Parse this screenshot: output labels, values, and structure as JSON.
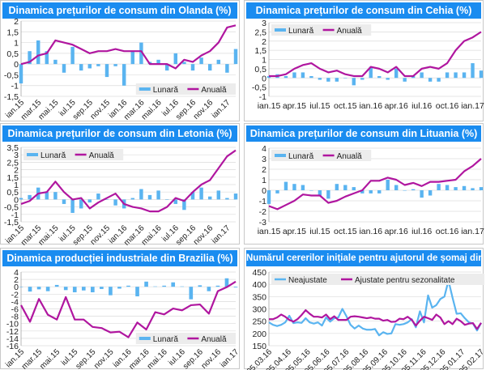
{
  "colors": {
    "bar": "#5ab4f0",
    "line": "#b0169f",
    "title_bg": "#1a8cf0",
    "grid": "#dcdcdc"
  },
  "chart_data": [
    {
      "type": "bar+line",
      "title": "Dinamica prețurilor de consum din Olanda (%)",
      "ylim": [
        -1.5,
        2
      ],
      "yticks": [
        "-1,5",
        "-1",
        "-0,5",
        "0",
        "0,5",
        "1",
        "1,5",
        "2"
      ],
      "ytick_values": [
        -1.5,
        -1,
        -0.5,
        0,
        0.5,
        1,
        1.5,
        2
      ],
      "legend": "bottom-right",
      "label_rotation": "rotated",
      "categories": [
        "ian.15",
        "feb.15",
        "mar.15",
        "apr.15",
        "mai.15",
        "iun.15",
        "iul.15",
        "aug.15",
        "sep.15",
        "oct.15",
        "nov.15",
        "dec.15",
        "ian.16",
        "feb.16",
        "mar.16",
        "apr.16",
        "mai.16",
        "iun.16",
        "iul.16",
        "aug.16",
        "sep.16",
        "oct.16",
        "nov.16",
        "dec.16",
        "ian.17",
        "feb.17"
      ],
      "xtick_labels": [
        "ian.15",
        "mar.15",
        "mai.15",
        "iul.15",
        "sep.15",
        "nov.15",
        "ian.16",
        "mar.16",
        "mai.16",
        "iul.16",
        "sep.16",
        "nov.16",
        "ian.17"
      ],
      "series": [
        {
          "name": "Lunară",
          "type": "bar",
          "values": [
            -0.9,
            0.6,
            1.1,
            0.6,
            0.2,
            -0.4,
            0.8,
            -0.3,
            -0.2,
            -0.1,
            -0.6,
            -0.1,
            -1.0,
            0.6,
            1.0,
            0.1,
            0.2,
            -0.3,
            0.5,
            0.1,
            -0.3,
            0.3,
            -0.3,
            0.2,
            -0.4,
            0.7
          ]
        },
        {
          "name": "Anuală",
          "type": "line",
          "values": [
            0,
            0.1,
            0.4,
            0.5,
            1.1,
            1.0,
            0.9,
            0.7,
            0.5,
            0.6,
            0.6,
            0.7,
            0.6,
            0.6,
            0.6,
            0,
            0,
            0,
            -0.2,
            0.2,
            0.1,
            0.4,
            0.6,
            1.0,
            1.7,
            1.8
          ]
        }
      ]
    },
    {
      "type": "bar+line",
      "title": "Dinamica prețurilor de consum din Cehia (%)",
      "ylim": [
        -1,
        3
      ],
      "yticks": [
        "-1",
        "-0,5",
        "0",
        "0,5",
        "1",
        "1,5",
        "2",
        "2,5",
        "3"
      ],
      "ytick_values": [
        -1,
        -0.5,
        0,
        0.5,
        1,
        1.5,
        2,
        2.5,
        3
      ],
      "legend": "top-left",
      "label_rotation": "horizontal",
      "categories": [
        "ian.15",
        "feb.15",
        "mar.15",
        "apr.15",
        "mai.15",
        "iun.15",
        "iul.15",
        "aug.15",
        "sep.15",
        "oct.15",
        "nov.15",
        "dec.15",
        "ian.16",
        "feb.16",
        "mar.16",
        "apr.16",
        "mai.16",
        "iun.16",
        "iul.16",
        "aug.16",
        "sep.16",
        "oct.16",
        "nov.16",
        "dec.16",
        "ian.17",
        "feb.17"
      ],
      "xtick_labels": [
        "ian.15",
        "apr.15",
        "iul.15",
        "oct.15",
        "ian.16",
        "apr.16",
        "iul.16",
        "oct.16",
        "ian.17"
      ],
      "series": [
        {
          "name": "Lunară",
          "type": "bar",
          "values": [
            0.1,
            0.2,
            0.1,
            0.3,
            0.3,
            0.1,
            -0.1,
            -0.2,
            -0.2,
            0,
            -0.4,
            -0.1,
            0.6,
            0.1,
            -0.1,
            0.5,
            -0.2,
            0.1,
            0.3,
            -0.2,
            -0.2,
            0.3,
            0.3,
            0.3,
            0.8,
            0.4
          ]
        },
        {
          "name": "Anuală",
          "type": "line",
          "values": [
            0.1,
            0.1,
            0.2,
            0.5,
            0.7,
            0.8,
            0.5,
            0.3,
            0.4,
            0.2,
            0.1,
            0.1,
            0.6,
            0.5,
            0.3,
            0.6,
            0.1,
            0.1,
            0.5,
            0.6,
            0.5,
            0.8,
            1.5,
            2.0,
            2.2,
            2.5
          ]
        }
      ]
    },
    {
      "type": "bar+line",
      "title": "Dinamica prețurilor de consum din Letonia (%)",
      "ylim": [
        -1.5,
        3.5
      ],
      "yticks": [
        "-1,5",
        "-1",
        "-0,5",
        "0",
        "0,5",
        "1",
        "1,5",
        "2",
        "2,5",
        "3",
        "3,5"
      ],
      "ytick_values": [
        -1.5,
        -1,
        -0.5,
        0,
        0.5,
        1,
        1.5,
        2,
        2.5,
        3,
        3.5
      ],
      "legend": "top-left",
      "label_rotation": "rotated",
      "categories": [
        "ian.15",
        "feb.15",
        "mar.15",
        "apr.15",
        "mai.15",
        "iun.15",
        "iul.15",
        "aug.15",
        "sep.15",
        "oct.15",
        "nov.15",
        "dec.15",
        "ian.16",
        "feb.16",
        "mar.16",
        "apr.16",
        "mai.16",
        "iun.16",
        "iul.16",
        "aug.16",
        "sep.16",
        "oct.16",
        "nov.16",
        "dec.16",
        "ian.17",
        "feb.17"
      ],
      "xtick_labels": [
        "ian.15",
        "mar.15",
        "mai.15",
        "iul.15",
        "sep.15",
        "nov.15",
        "ian.16",
        "mar.16",
        "mai.16",
        "iul.16",
        "sep.16",
        "nov.16",
        "ian.17"
      ],
      "series": [
        {
          "name": "Lunară",
          "type": "bar",
          "values": [
            0.1,
            0.3,
            0.8,
            0.5,
            0.5,
            -0.3,
            -0.9,
            -0.6,
            -0.2,
            0.4,
            0,
            -0.4,
            -0.6,
            0.1,
            0.7,
            0.3,
            0.6,
            0,
            -0.3,
            -0.7,
            0.5,
            0.8,
            0.2,
            0.6,
            0.1,
            0.4
          ]
        },
        {
          "name": "Anuală",
          "type": "line",
          "values": [
            -0.3,
            -0.1,
            0.4,
            0.5,
            1.2,
            0.5,
            0,
            0.1,
            -0.6,
            -0.2,
            0.1,
            0.4,
            -0.3,
            -0.5,
            -0.6,
            -0.8,
            -0.8,
            -0.5,
            0.1,
            -0.1,
            0.5,
            1.0,
            1.3,
            2.1,
            2.9,
            3.3
          ]
        }
      ]
    },
    {
      "type": "bar+line",
      "title": "Dinamica prețurilor de consum din Lituania (%)",
      "ylim": [
        -3,
        4
      ],
      "yticks": [
        "-3",
        "-2",
        "-1",
        "0",
        "1",
        "2",
        "3",
        "4"
      ],
      "ytick_values": [
        -3,
        -2,
        -1,
        0,
        1,
        2,
        3,
        4
      ],
      "legend": "top-left",
      "label_rotation": "horizontal",
      "categories": [
        "ian.15",
        "feb.15",
        "mar.15",
        "apr.15",
        "mai.15",
        "iun.15",
        "iul.15",
        "aug.15",
        "sep.15",
        "oct.15",
        "nov.15",
        "dec.15",
        "ian.16",
        "feb.16",
        "mar.16",
        "apr.16",
        "mai.16",
        "iun.16",
        "iul.16",
        "aug.16",
        "sep.16",
        "oct.16",
        "nov.16",
        "dec.16",
        "ian.17",
        "feb.17"
      ],
      "xtick_labels": [
        "ian.15",
        "apr.15",
        "iul.15",
        "oct.15",
        "ian.16",
        "apr.16",
        "iul.16",
        "oct.16",
        "ian.17"
      ],
      "series": [
        {
          "name": "Lunară",
          "type": "bar",
          "values": [
            -1.3,
            -0.3,
            0.8,
            0.6,
            0.5,
            0,
            -0.5,
            -0.8,
            0.6,
            0.5,
            0.3,
            -0.3,
            -0.3,
            -0.3,
            1.0,
            0.5,
            0,
            0.1,
            -0.7,
            -0.5,
            0.6,
            0.5,
            0.3,
            0.4,
            0.2,
            0.3
          ]
        },
        {
          "name": "Anuală",
          "type": "line",
          "values": [
            -1.5,
            -1.8,
            -1.4,
            -1.0,
            -0.4,
            -0.5,
            -0.5,
            -1.2,
            -1.0,
            -0.6,
            -0.3,
            0,
            0.9,
            0.9,
            1.2,
            1.0,
            0.5,
            0.7,
            0.4,
            0.8,
            0.8,
            0.9,
            1.0,
            1.8,
            2.3,
            3.0
          ]
        }
      ]
    },
    {
      "type": "bar+line",
      "title": "Dinamica producției industriale din Brazilia (%)",
      "ylim": [
        -16,
        4
      ],
      "yticks": [
        "-16",
        "-14",
        "-12",
        "-10",
        "-8",
        "-6",
        "-4",
        "-2",
        "0",
        "2",
        "4"
      ],
      "ytick_values": [
        -16,
        -14,
        -12,
        -10,
        -8,
        -6,
        -4,
        -2,
        0,
        2,
        4
      ],
      "legend": "bottom-right",
      "label_rotation": "rotated",
      "categories": [
        "ian.15",
        "feb.15",
        "mar.15",
        "apr.15",
        "mai.15",
        "iun.15",
        "iul.15",
        "aug.15",
        "sep.15",
        "oct.15",
        "nov.15",
        "dec.15",
        "ian.16",
        "feb.16",
        "mar.16",
        "apr.16",
        "mai.16",
        "iun.16",
        "iul.16",
        "aug.16",
        "sep.16",
        "oct.16",
        "nov.16",
        "dec.16",
        "ian.17"
      ],
      "xtick_labels": [
        "ian.15",
        "mar.15",
        "mai.15",
        "iul.15",
        "sep.15",
        "nov.15",
        "ian.16",
        "mar.16",
        "mai.16",
        "iul.16",
        "sep.16",
        "nov.16",
        "ian.17"
      ],
      "series": [
        {
          "name": "Lunară",
          "type": "bar",
          "values": [
            0,
            -1.3,
            -0.7,
            -1.2,
            0.5,
            -0.9,
            -1.5,
            -1.0,
            -1.5,
            -0.6,
            -2.3,
            -0.5,
            0.3,
            -2.6,
            1.4,
            0.1,
            0.3,
            1.2,
            0.1,
            -3.4,
            0.4,
            -1.2,
            0.3,
            2.3,
            -0.2
          ]
        },
        {
          "name": "Anuală",
          "type": "line",
          "values": [
            -5,
            -9.5,
            -3.3,
            -7.6,
            -8.9,
            -2.8,
            -8.9,
            -8.9,
            -10.9,
            -11.2,
            -12.4,
            -12.2,
            -13.7,
            -9.7,
            -11.6,
            -6.9,
            -7.5,
            -5.9,
            -6.4,
            -5.0,
            -4.8,
            -7.3,
            -1.2,
            -0.1,
            1.4
          ]
        }
      ]
    },
    {
      "type": "line",
      "title": "Numărul cererilor inițiale pentru ajutorul de șomaj din SUA (mii)",
      "ylim": [
        150,
        450
      ],
      "yticks": [
        "150",
        "200",
        "250",
        "300",
        "350",
        "400",
        "450"
      ],
      "ytick_values": [
        150,
        200,
        250,
        300,
        350,
        400,
        450
      ],
      "legend": "top-left",
      "label_rotation": "rotated",
      "xtick_labels": [
        "05.03.16",
        "05.04.16",
        "05.05.16",
        "05.06.16",
        "05.07.16",
        "05.08.16",
        "05.09.16",
        "05.10.16",
        "05.11.16",
        "05.12.16",
        "05.01.17",
        "05.02.17"
      ],
      "series": [
        {
          "name": "Neajustate",
          "type": "line",
          "color": "#5ab4f0",
          "values": [
            245,
            235,
            230,
            235,
            245,
            272,
            242,
            245,
            243,
            262,
            245,
            240,
            245,
            232,
            265,
            248,
            262,
            265,
            300,
            270,
            235,
            220,
            232,
            220,
            215,
            215,
            218,
            192,
            205,
            198,
            200,
            238,
            235,
            238,
            245,
            258,
            225,
            290,
            245,
            355,
            305,
            315,
            340,
            350,
            415,
            345,
            280,
            282,
            262,
            245,
            240,
            212,
            243
          ]
        },
        {
          "name": "Ajustate pentru sezonalitate",
          "type": "line",
          "color": "#b0169f",
          "values": [
            258,
            258,
            265,
            277,
            268,
            255,
            248,
            258,
            275,
            295,
            280,
            268,
            268,
            265,
            277,
            258,
            270,
            255,
            255,
            255,
            268,
            270,
            268,
            265,
            262,
            265,
            260,
            260,
            252,
            255,
            247,
            248,
            260,
            258,
            268,
            255,
            232,
            252,
            268,
            262,
            255,
            277,
            265,
            238,
            250,
            238,
            260,
            250,
            235,
            240,
            242,
            218,
            243
          ]
        }
      ]
    }
  ]
}
